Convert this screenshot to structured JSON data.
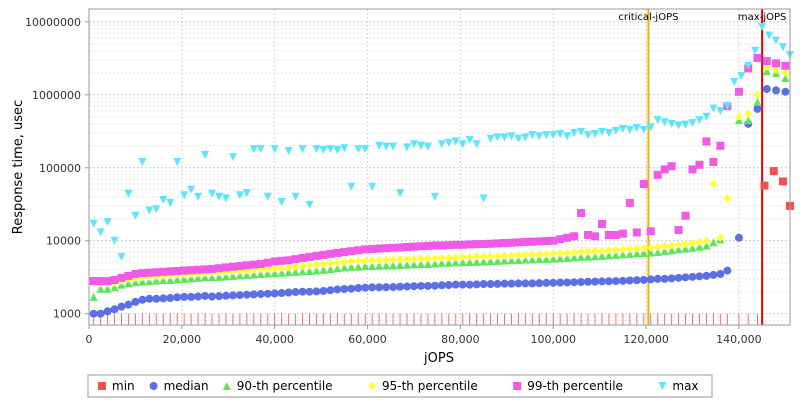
{
  "chart_data": {
    "type": "scatter",
    "xlabel": "jOPS",
    "ylabel": "Response time, usec",
    "xlim": [
      0,
      151000
    ],
    "ylim": [
      700,
      15000000
    ],
    "yscale": "log",
    "x_ticks": [
      0,
      20000,
      40000,
      60000,
      80000,
      100000,
      120000,
      140000
    ],
    "x_tick_labels": [
      "0",
      "20,000",
      "40,000",
      "60,000",
      "80,000",
      "100,000",
      "120,000",
      "140,000"
    ],
    "y_ticks": [
      1000,
      10000,
      100000,
      1000000,
      10000000
    ],
    "y_tick_labels": [
      "1000",
      "10000",
      "100000",
      "1000000",
      "10000000"
    ],
    "grid": true,
    "legend_position": "bottom",
    "markers": [
      {
        "label": "critical-jOPS",
        "x": 120500,
        "color": "#f0b400"
      },
      {
        "label": "max-jOPS",
        "x": 145000,
        "color": "#e00000"
      }
    ],
    "series": [
      {
        "name": "min",
        "color": "#f05050",
        "shape": "square",
        "x": [
          145500,
          147500,
          149500,
          151000
        ],
        "y": [
          57000,
          90000,
          65000,
          30000
        ]
      },
      {
        "name": "median",
        "color": "#5b6fe6",
        "shape": "circle",
        "x": [
          1000,
          2500,
          4000,
          5500,
          7000,
          8500,
          10000,
          11500,
          13000,
          14500,
          16000,
          17500,
          19000,
          20500,
          22000,
          23500,
          25000,
          26500,
          28000,
          29500,
          31000,
          32500,
          34000,
          35500,
          37000,
          38500,
          40000,
          41500,
          43000,
          44500,
          46000,
          47500,
          49000,
          50500,
          52000,
          53500,
          55000,
          56500,
          58000,
          59500,
          61000,
          62500,
          64000,
          65500,
          67000,
          68500,
          70000,
          71500,
          73000,
          74500,
          76000,
          77500,
          79000,
          80500,
          82000,
          83500,
          85000,
          86500,
          88000,
          89500,
          91000,
          92500,
          94000,
          95500,
          97000,
          98500,
          100000,
          101500,
          103000,
          104500,
          106000,
          107500,
          109000,
          110500,
          112000,
          113500,
          115000,
          116500,
          118000,
          119500,
          121000,
          122500,
          124000,
          125500,
          127000,
          128500,
          130000,
          131500,
          133000,
          134500,
          136000,
          137500,
          140000,
          142000,
          144000,
          146000,
          148000,
          150000
        ],
        "y": [
          1000,
          1000,
          1080,
          1150,
          1250,
          1330,
          1450,
          1550,
          1600,
          1600,
          1620,
          1640,
          1680,
          1700,
          1700,
          1720,
          1750,
          1720,
          1740,
          1760,
          1780,
          1800,
          1820,
          1840,
          1860,
          1880,
          1900,
          1920,
          1950,
          1980,
          2000,
          2000,
          2020,
          2050,
          2100,
          2150,
          2180,
          2200,
          2250,
          2270,
          2300,
          2300,
          2310,
          2320,
          2340,
          2360,
          2380,
          2400,
          2400,
          2420,
          2450,
          2470,
          2500,
          2500,
          2500,
          2520,
          2550,
          2550,
          2560,
          2580,
          2580,
          2600,
          2600,
          2600,
          2620,
          2640,
          2650,
          2670,
          2680,
          2700,
          2720,
          2740,
          2750,
          2770,
          2780,
          2800,
          2820,
          2850,
          2880,
          2900,
          2950,
          3000,
          3000,
          3050,
          3100,
          3150,
          3200,
          3250,
          3300,
          3400,
          3500,
          3900,
          11000,
          400000,
          640000,
          1200000,
          1150000,
          1100000
        ]
      },
      {
        "name": "90-th percentile",
        "color": "#5ae65a",
        "shape": "triangle-up",
        "x": [
          1000,
          2500,
          4000,
          5500,
          7000,
          8500,
          10000,
          11500,
          13000,
          14500,
          16000,
          17500,
          19000,
          20500,
          22000,
          23500,
          25000,
          26500,
          28000,
          29500,
          31000,
          32500,
          34000,
          35500,
          37000,
          38500,
          40000,
          41500,
          43000,
          44500,
          46000,
          47500,
          49000,
          50500,
          52000,
          53500,
          55000,
          56500,
          58000,
          59500,
          61000,
          62500,
          64000,
          65500,
          67000,
          68500,
          70000,
          71500,
          73000,
          74500,
          76000,
          77500,
          79000,
          80500,
          82000,
          83500,
          85000,
          86500,
          88000,
          89500,
          91000,
          92500,
          94000,
          95500,
          97000,
          98500,
          100000,
          101500,
          103000,
          104500,
          106000,
          107500,
          109000,
          110500,
          112000,
          113500,
          115000,
          116500,
          118000,
          119500,
          121000,
          122500,
          124000,
          125500,
          127000,
          128500,
          130000,
          131500,
          133000,
          134500,
          136000,
          140000,
          142000,
          144000,
          146000,
          148000,
          150000
        ],
        "y": [
          1700,
          2200,
          2200,
          2300,
          2500,
          2600,
          2700,
          2750,
          2800,
          2850,
          2900,
          2900,
          2950,
          3000,
          3050,
          3100,
          3150,
          3150,
          3200,
          3250,
          3300,
          3350,
          3400,
          3450,
          3500,
          3550,
          3600,
          3650,
          3700,
          3750,
          3800,
          3850,
          3900,
          4000,
          4100,
          4200,
          4300,
          4400,
          4400,
          4500,
          4500,
          4550,
          4600,
          4600,
          4650,
          4700,
          4750,
          4800,
          4800,
          4850,
          5000,
          5000,
          5050,
          5100,
          5100,
          5150,
          5200,
          5250,
          5300,
          5350,
          5400,
          5450,
          5500,
          5550,
          5600,
          5650,
          5700,
          5750,
          5800,
          5900,
          6000,
          6050,
          6100,
          6200,
          6300,
          6400,
          6500,
          6600,
          6700,
          6800,
          6900,
          7000,
          7200,
          7400,
          7600,
          7800,
          8000,
          8300,
          8600,
          9500,
          10500,
          450000,
          450000,
          800000,
          2100000,
          2000000,
          1700000
        ]
      },
      {
        "name": "95-th percentile",
        "color": "#ffff33",
        "shape": "diamond",
        "x": [
          1000,
          2500,
          4000,
          5500,
          7000,
          8500,
          10000,
          11500,
          13000,
          14500,
          16000,
          17500,
          19000,
          20500,
          22000,
          23500,
          25000,
          26500,
          28000,
          29500,
          31000,
          32500,
          34000,
          35500,
          37000,
          38500,
          40000,
          41500,
          43000,
          44500,
          46000,
          47500,
          49000,
          50500,
          52000,
          53500,
          55000,
          56500,
          58000,
          59500,
          61000,
          62500,
          64000,
          65500,
          67000,
          68500,
          70000,
          71500,
          73000,
          74500,
          76000,
          77500,
          79000,
          80500,
          82000,
          83500,
          85000,
          86500,
          88000,
          89500,
          91000,
          92500,
          94000,
          95500,
          97000,
          98500,
          100000,
          101500,
          103000,
          104500,
          106000,
          107500,
          109000,
          110500,
          112000,
          113500,
          115000,
          116500,
          118000,
          119500,
          121000,
          122500,
          124000,
          125500,
          127000,
          128500,
          130000,
          131500,
          133000,
          134500,
          136000,
          137500,
          140000,
          142000,
          144000,
          146000,
          148000,
          150000
        ],
        "y": [
          2600,
          2600,
          2600,
          2650,
          2800,
          3000,
          3100,
          3150,
          3200,
          3250,
          3300,
          3350,
          3400,
          3450,
          3500,
          3550,
          3600,
          3650,
          3700,
          3750,
          3800,
          3850,
          3900,
          4000,
          4050,
          4100,
          4150,
          4200,
          4300,
          4400,
          4500,
          4600,
          4700,
          4800,
          4900,
          5000,
          5100,
          5200,
          5300,
          5300,
          5350,
          5400,
          5450,
          5500,
          5550,
          5600,
          5600,
          5650,
          5700,
          5750,
          5800,
          5850,
          5900,
          5950,
          6000,
          6050,
          6100,
          6150,
          6200,
          6250,
          6300,
          6350,
          6400,
          6450,
          6500,
          6550,
          6600,
          6700,
          6800,
          6900,
          7000,
          7100,
          7200,
          7300,
          7400,
          7500,
          7600,
          7700,
          7800,
          7900,
          8000,
          8200,
          8400,
          8600,
          8800,
          9000,
          9300,
          9600,
          10000,
          60000,
          11000,
          38000,
          500000,
          550000,
          1000000,
          2400000,
          2200000,
          2000000
        ]
      },
      {
        "name": "99-th percentile",
        "color": "#f05ae6",
        "shape": "square",
        "x": [
          1000,
          2500,
          4000,
          5500,
          7000,
          8500,
          10000,
          11500,
          13000,
          14500,
          16000,
          17500,
          19000,
          20500,
          22000,
          23500,
          25000,
          26500,
          28000,
          29500,
          31000,
          32500,
          34000,
          35500,
          37000,
          38500,
          40000,
          41500,
          43000,
          44500,
          46000,
          47500,
          49000,
          50500,
          52000,
          53500,
          55000,
          56500,
          58000,
          59500,
          61000,
          62500,
          64000,
          65500,
          67000,
          68500,
          70000,
          71500,
          73000,
          74500,
          76000,
          77500,
          79000,
          80500,
          82000,
          83500,
          85000,
          86500,
          88000,
          89500,
          91000,
          92500,
          94000,
          95500,
          97000,
          98500,
          100000,
          101500,
          103000,
          104500,
          106000,
          107500,
          109000,
          110500,
          112000,
          113500,
          115000,
          116500,
          118000,
          119500,
          121000,
          122500,
          124000,
          125500,
          127000,
          128500,
          130000,
          131500,
          133000,
          134500,
          136000,
          137500,
          140000,
          142000,
          144000,
          146000,
          148000,
          150000
        ],
        "y": [
          2800,
          2800,
          2800,
          2900,
          3100,
          3300,
          3500,
          3600,
          3650,
          3700,
          3750,
          3800,
          3850,
          3900,
          3950,
          4000,
          4050,
          4100,
          4200,
          4300,
          4400,
          4500,
          4600,
          4700,
          4800,
          5000,
          5200,
          5300,
          5400,
          5600,
          5800,
          6000,
          6200,
          6400,
          6600,
          6800,
          7000,
          7200,
          7400,
          7600,
          7700,
          7800,
          7900,
          8000,
          8100,
          8200,
          8300,
          8400,
          8500,
          8600,
          8600,
          8700,
          8800,
          8800,
          8900,
          9000,
          9000,
          9100,
          9200,
          9300,
          9400,
          9500,
          9600,
          9700,
          9800,
          9900,
          10000,
          10500,
          11000,
          11500,
          24000,
          12000,
          11500,
          17000,
          12000,
          12000,
          12500,
          33000,
          13000,
          60000,
          13500,
          80000,
          95000,
          105000,
          14000,
          22000,
          95000,
          110000,
          230000,
          120000,
          200000,
          700000,
          1100000,
          2300000,
          3200000,
          2900000,
          2700000,
          2500000
        ]
      },
      {
        "name": "max",
        "color": "#5ae6ff",
        "shape": "triangle-down",
        "x": [
          1000,
          2500,
          4000,
          5500,
          7000,
          8500,
          10000,
          11500,
          13000,
          14500,
          16000,
          17500,
          19000,
          20500,
          22000,
          23500,
          25000,
          26500,
          28000,
          29500,
          31000,
          32500,
          34000,
          35500,
          37000,
          38500,
          40000,
          41500,
          43000,
          44500,
          46000,
          47500,
          49000,
          50500,
          52000,
          53500,
          55000,
          56500,
          58000,
          59500,
          61000,
          62500,
          64000,
          65500,
          67000,
          68500,
          70000,
          71500,
          73000,
          74500,
          76000,
          77500,
          79000,
          80500,
          82000,
          83500,
          85000,
          86500,
          88000,
          89500,
          91000,
          92500,
          94000,
          95500,
          97000,
          98500,
          100000,
          101500,
          103000,
          104500,
          106000,
          107500,
          109000,
          110500,
          112000,
          113500,
          115000,
          116500,
          118000,
          119500,
          121000,
          122500,
          124000,
          125500,
          127000,
          128500,
          130000,
          131500,
          133000,
          134500,
          136000,
          137500,
          139000,
          140500,
          142000,
          143500,
          145000,
          146500,
          148000,
          149500,
          151000
        ],
        "y": [
          17000,
          13000,
          18000,
          10000,
          6000,
          44000,
          22000,
          120000,
          26000,
          27000,
          36000,
          33000,
          120000,
          42000,
          50000,
          40000,
          150000,
          44000,
          40000,
          38000,
          140000,
          42000,
          45000,
          180000,
          180000,
          40000,
          180000,
          34000,
          170000,
          40000,
          180000,
          31000,
          180000,
          175000,
          180000,
          175000,
          185000,
          55000,
          180000,
          180000,
          55000,
          200000,
          195000,
          195000,
          45000,
          190000,
          210000,
          200000,
          195000,
          40000,
          210000,
          220000,
          230000,
          210000,
          240000,
          210000,
          38000,
          250000,
          260000,
          260000,
          270000,
          250000,
          260000,
          280000,
          270000,
          280000,
          280000,
          290000,
          270000,
          300000,
          310000,
          280000,
          290000,
          310000,
          300000,
          320000,
          340000,
          330000,
          350000,
          330000,
          360000,
          450000,
          420000,
          400000,
          380000,
          390000,
          410000,
          450000,
          500000,
          650000,
          600000,
          700000,
          1500000,
          1800000,
          2500000,
          4000000,
          8500000,
          6500000,
          5500000,
          4500000,
          3500000
        ]
      }
    ]
  }
}
